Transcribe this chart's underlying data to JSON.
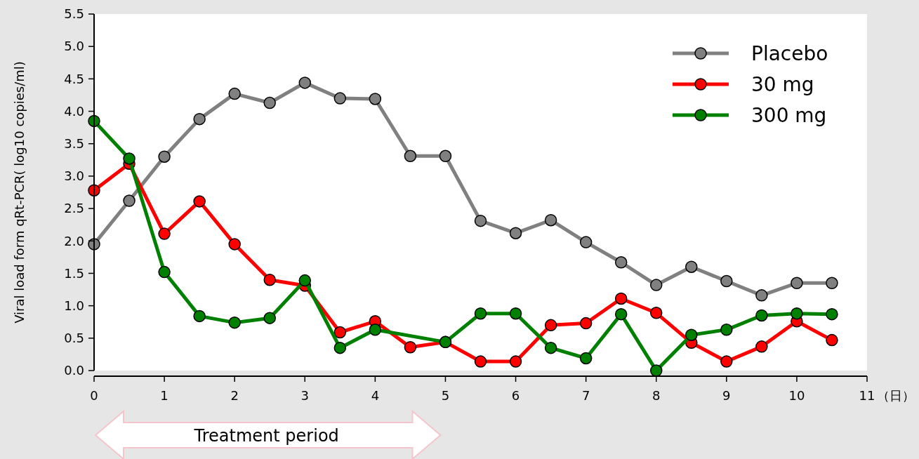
{
  "chart_data": {
    "type": "line",
    "ylabel": "Viral load form qRt-PCR( log10 copies/ml)",
    "xlim": [
      0,
      11
    ],
    "xticks": [
      0,
      1,
      2,
      3,
      4,
      5,
      6,
      7,
      8,
      9,
      10,
      11
    ],
    "xlabel": "（日）",
    "ylim": [
      0,
      5.5
    ],
    "yticks": [
      {
        "value": 0,
        "label": "0.0"
      },
      {
        "value": 0.5,
        "label": "0.5"
      },
      {
        "value": 1,
        "label": "1.0"
      },
      {
        "value": 1.5,
        "label": "1.5"
      },
      {
        "value": 2,
        "label": "2.0"
      },
      {
        "value": 2.5,
        "label": "2.5"
      },
      {
        "value": 3,
        "label": "3.0"
      },
      {
        "value": 3.5,
        "label": "3.5"
      },
      {
        "value": 4,
        "label": "4.0"
      },
      {
        "value": 4.5,
        "label": "4.5"
      },
      {
        "value": 5,
        "label": "5.0"
      },
      {
        "value": 5.5,
        "label": "5.5"
      }
    ],
    "grid": false,
    "legend": "top right",
    "marker": "circle",
    "line_style": "solid",
    "annotations": [
      {
        "text": "Treatment period"
      }
    ],
    "series": [
      {
        "name": "Placebo",
        "color": "#808080",
        "x": [
          0,
          0.5,
          1,
          1.5,
          2,
          2.5,
          3,
          3.5,
          4,
          4.5,
          5,
          5.5,
          6,
          6.5,
          7,
          7.5,
          8,
          8.5,
          9,
          9.5,
          10,
          10.5
        ],
        "values": [
          1.95,
          2.62,
          3.3,
          3.88,
          4.27,
          4.13,
          4.44,
          4.2,
          4.19,
          3.31,
          3.31,
          2.31,
          2.12,
          2.32,
          1.98,
          1.67,
          1.32,
          1.6,
          1.38,
          1.16,
          1.35,
          1.35
        ]
      },
      {
        "name": "30 mg",
        "color": "#ff0000",
        "x": [
          0,
          0.5,
          1,
          1.5,
          2,
          2.5,
          3,
          3.5,
          4,
          4.5,
          5,
          5.5,
          6,
          6.5,
          7,
          7.5,
          8,
          8.5,
          9,
          9.5,
          10,
          10.5
        ],
        "values": [
          2.78,
          3.19,
          2.11,
          2.61,
          1.95,
          1.4,
          1.31,
          0.59,
          0.76,
          0.36,
          0.44,
          0.14,
          0.14,
          0.7,
          0.73,
          1.11,
          0.89,
          0.43,
          0.14,
          0.37,
          0.76,
          0.47
        ]
      },
      {
        "name": "300 mg",
        "color": "#008000",
        "x": [
          0,
          0.5,
          1,
          1.5,
          2,
          2.5,
          3,
          3.5,
          4,
          5,
          5.5,
          6,
          6.5,
          7,
          7.5,
          8,
          8.5,
          9,
          9.5,
          10,
          10.5
        ],
        "values": [
          3.85,
          3.27,
          1.52,
          0.84,
          0.74,
          0.81,
          1.39,
          0.35,
          0.63,
          0.44,
          0.88,
          0.88,
          0.35,
          0.19,
          0.87,
          0,
          0.55,
          0.63,
          0.85,
          0.88,
          0.87
        ]
      }
    ]
  }
}
